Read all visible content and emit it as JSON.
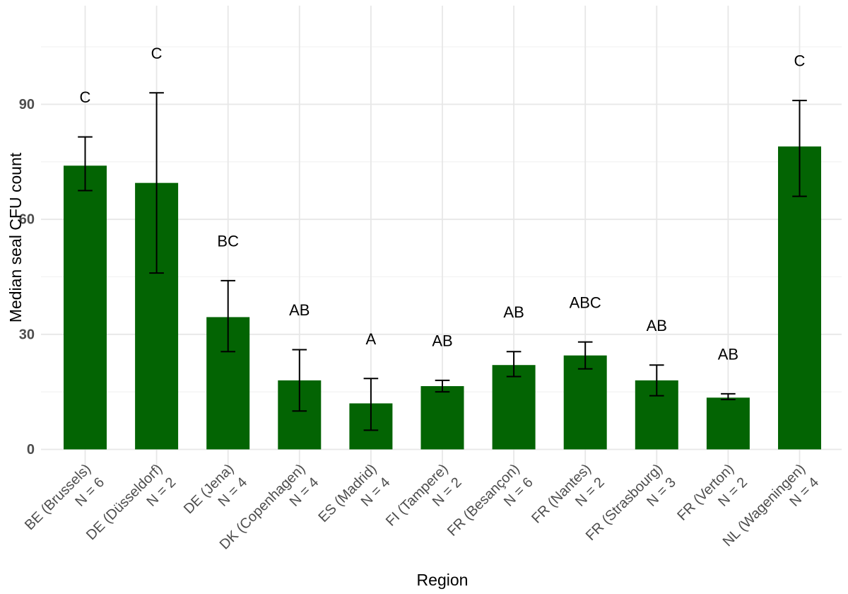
{
  "figure": {
    "xlabel": "Region",
    "ylabel": "Median seal CFU count"
  },
  "chart_data": {
    "type": "bar",
    "title": "",
    "xlabel": "Region",
    "ylabel": "Median seal CFU count",
    "categories": [
      "BE (Brussels)",
      "DE (Düsseldorf)",
      "DE (Jena)",
      "DK (Copenhagen)",
      "ES (Madrid)",
      "FI (Tampere)",
      "FR (Besançon)",
      "FR (Nantes)",
      "FR (Strasbourg)",
      "FR (Verton)",
      "NL (Wageningen)"
    ],
    "sample_sizes": [
      "N = 6",
      "N = 2",
      "N = 4",
      "N = 4",
      "N = 4",
      "N = 2",
      "N = 6",
      "N = 2",
      "N = 3",
      "N = 2",
      "N = 4"
    ],
    "values": [
      74,
      69.5,
      34.5,
      18,
      12,
      16.5,
      22,
      24.5,
      18,
      13.5,
      79
    ],
    "error_low": [
      67.5,
      46,
      25.5,
      10,
      5,
      15,
      19,
      21,
      14,
      13,
      66
    ],
    "error_high": [
      81.5,
      93,
      44,
      26,
      18.5,
      18,
      25.5,
      28,
      22,
      14.5,
      91
    ],
    "sig_letters": [
      "C",
      "C",
      "BC",
      "AB",
      "A",
      "AB",
      "AB",
      "ABC",
      "AB",
      "AB",
      "C"
    ],
    "yticks": [
      0,
      30,
      60,
      90
    ],
    "yticks_minor": [
      15,
      45,
      75,
      105
    ],
    "ylim": [
      -5.5,
      115.7
    ],
    "grid": true,
    "legend": false,
    "bar_color": "#036403",
    "error_color": "#000000",
    "letter_color": "#000000",
    "axis_text_color": "#4d4d4d",
    "axis_title_color": "#000000",
    "grid_major_color": "#e7e7e7",
    "grid_minor_color": "#f1f1f1",
    "background_color": "#ffffff"
  }
}
